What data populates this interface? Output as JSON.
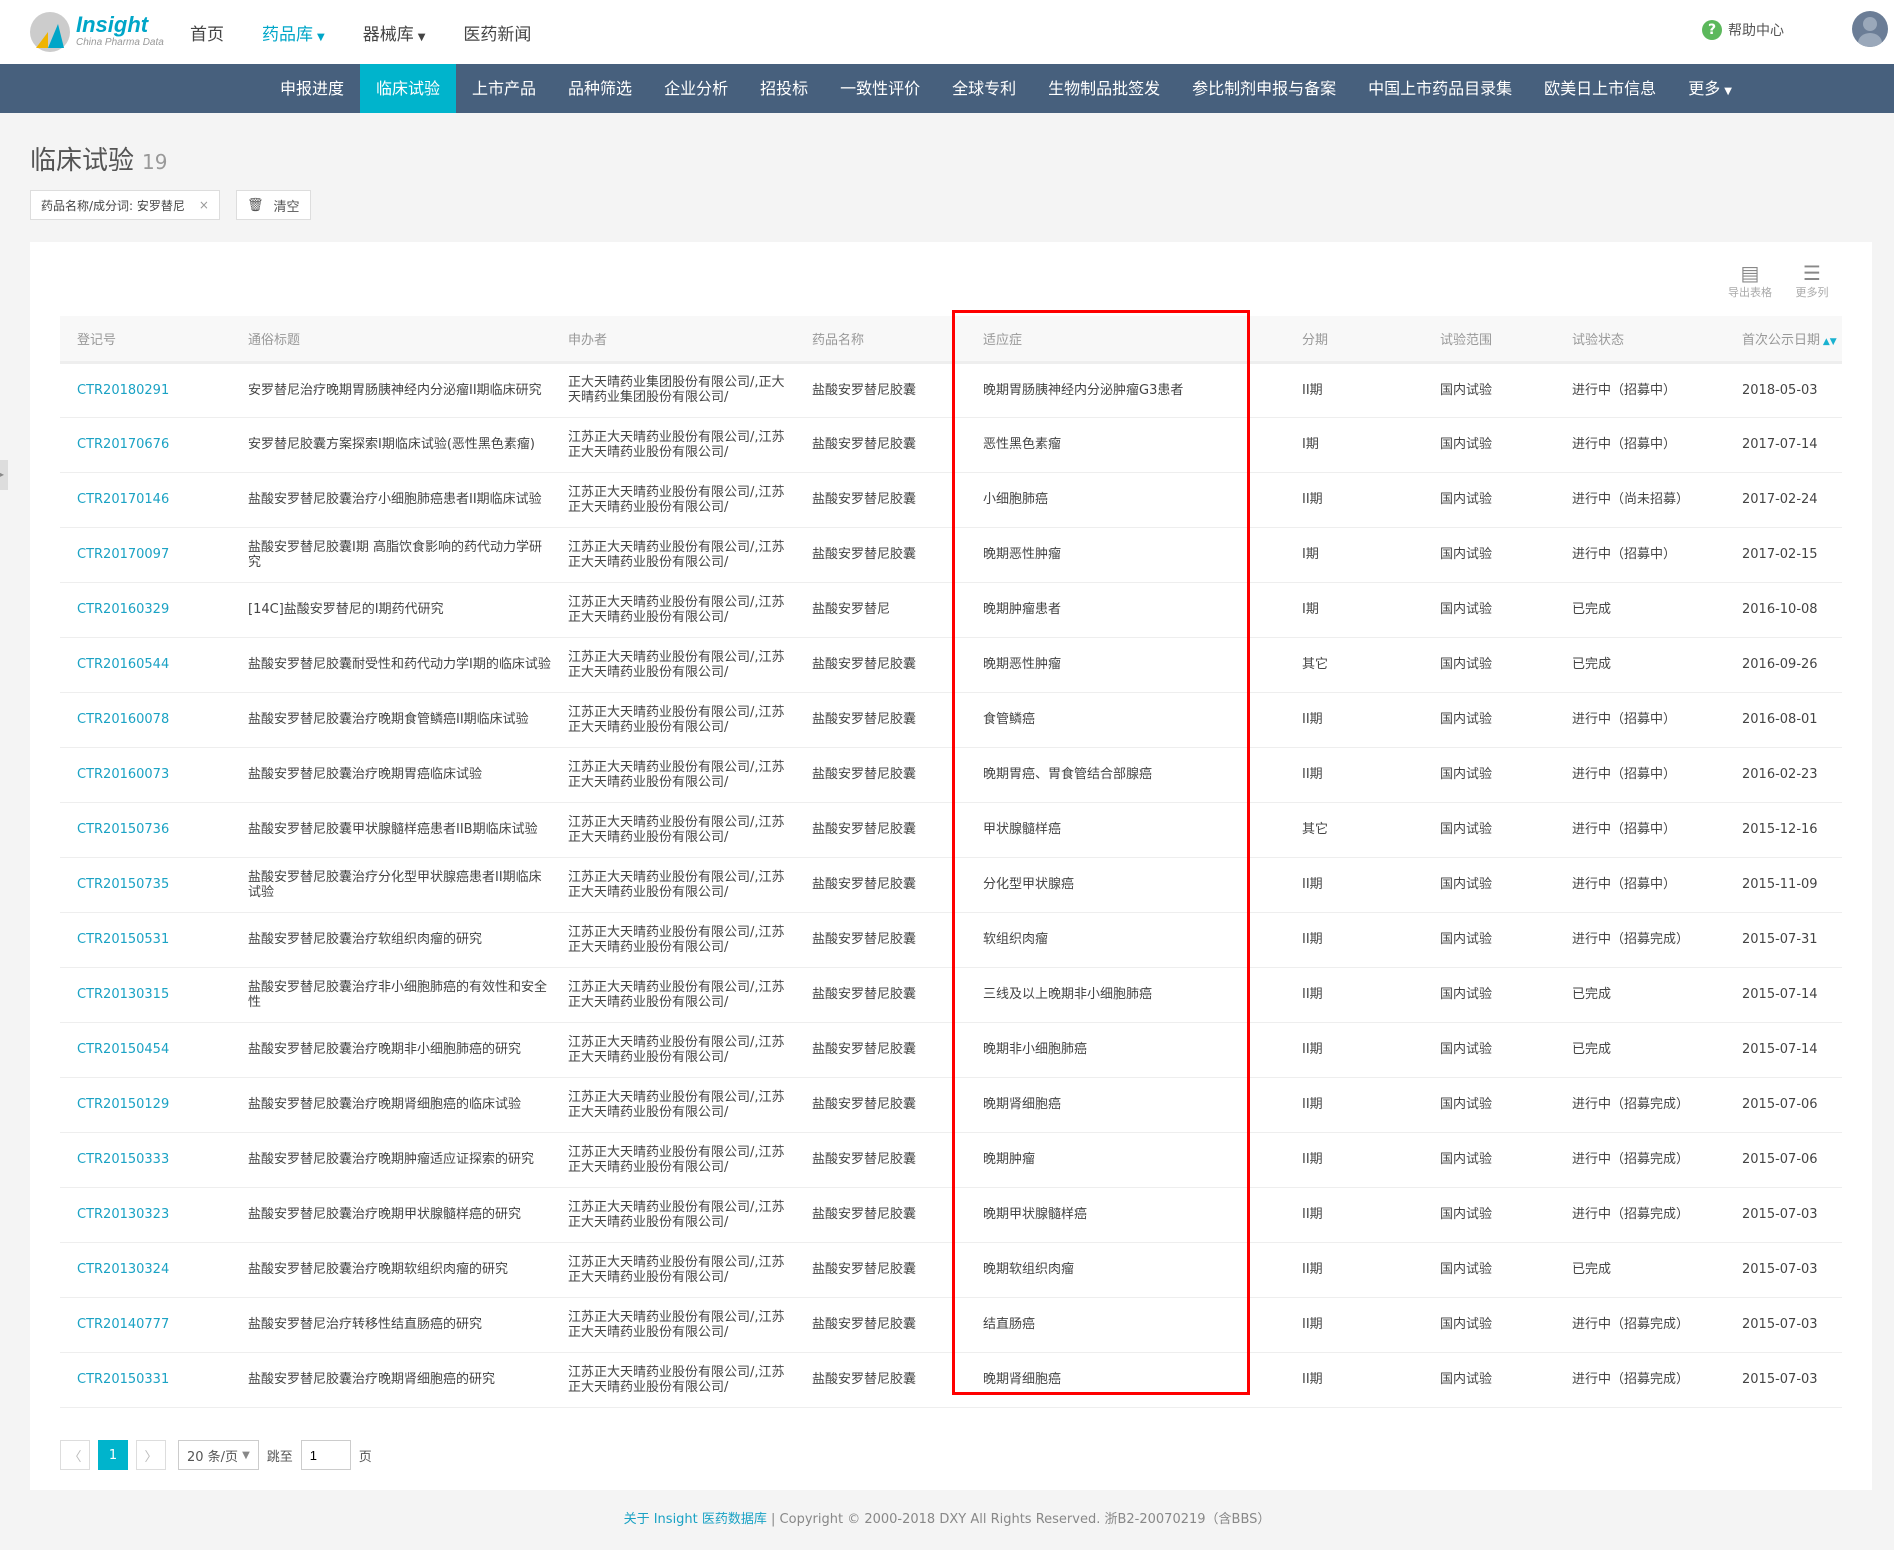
{
  "header": {
    "brand": "Insight",
    "brand_sub": "China Pharma Data",
    "nav": [
      {
        "label": "首页"
      },
      {
        "label": "药品库",
        "active": true,
        "dropdown": true
      },
      {
        "label": "器械库",
        "dropdown": true
      },
      {
        "label": "医药新闻"
      }
    ],
    "help": "帮助中心"
  },
  "main_nav": [
    "申报进度",
    "临床试验",
    "上市产品",
    "品种筛选",
    "企业分析",
    "招投标",
    "一致性评价",
    "全球专利",
    "生物制品批签发",
    "参比制剂申报与备案",
    "中国上市药品目录集",
    "欧美日上市信息",
    "更多"
  ],
  "main_nav_active": "临床试验",
  "page": {
    "title": "临床试验",
    "count": "19"
  },
  "filter": {
    "chip": "药品名称/成分词: 安罗替尼",
    "clear": "清空"
  },
  "tools": {
    "export": "导出表格",
    "more_cols": "更多列"
  },
  "columns": [
    "登记号",
    "通俗标题",
    "申办者",
    "药品名称",
    "适应症",
    "分期",
    "试验范围",
    "试验状态",
    "首次公示日期"
  ],
  "rows": [
    [
      "CTR20180291",
      "安罗替尼治疗晚期胃肠胰神经内分泌瘤II期临床研究",
      "正大天晴药业集团股份有限公司/,正大天晴药业集团股份有限公司/",
      "盐酸安罗替尼胶囊",
      "晚期胃肠胰神经内分泌肿瘤G3患者",
      "II期",
      "国内试验",
      "进行中（招募中）",
      "2018-05-03"
    ],
    [
      "CTR20170676",
      "安罗替尼胶囊方案探索I期临床试验(恶性黑色素瘤)",
      "江苏正大天晴药业股份有限公司/,江苏正大天晴药业股份有限公司/",
      "盐酸安罗替尼胶囊",
      "恶性黑色素瘤",
      "I期",
      "国内试验",
      "进行中（招募中）",
      "2017-07-14"
    ],
    [
      "CTR20170146",
      "盐酸安罗替尼胶囊治疗小细胞肺癌患者II期临床试验",
      "江苏正大天晴药业股份有限公司/,江苏正大天晴药业股份有限公司/",
      "盐酸安罗替尼胶囊",
      "小细胞肺癌",
      "II期",
      "国内试验",
      "进行中（尚未招募）",
      "2017-02-24"
    ],
    [
      "CTR20170097",
      "盐酸安罗替尼胶囊Ⅰ期 高脂饮食影响的药代动力学研究",
      "江苏正大天晴药业股份有限公司/,江苏正大天晴药业股份有限公司/",
      "盐酸安罗替尼胶囊",
      "晚期恶性肿瘤",
      "I期",
      "国内试验",
      "进行中（招募中）",
      "2017-02-15"
    ],
    [
      "CTR20160329",
      "[14C]盐酸安罗替尼的I期药代研究",
      "江苏正大天晴药业股份有限公司/,江苏正大天晴药业股份有限公司/",
      "盐酸安罗替尼",
      "晚期肿瘤患者",
      "I期",
      "国内试验",
      "已完成",
      "2016-10-08"
    ],
    [
      "CTR20160544",
      "盐酸安罗替尼胶囊耐受性和药代动力学I期的临床试验",
      "江苏正大天晴药业股份有限公司/,江苏正大天晴药业股份有限公司/",
      "盐酸安罗替尼胶囊",
      "晚期恶性肿瘤",
      "其它",
      "国内试验",
      "已完成",
      "2016-09-26"
    ],
    [
      "CTR20160078",
      "盐酸安罗替尼胶囊治疗晚期食管鳞癌II期临床试验",
      "江苏正大天晴药业股份有限公司/,江苏正大天晴药业股份有限公司/",
      "盐酸安罗替尼胶囊",
      "食管鳞癌",
      "II期",
      "国内试验",
      "进行中（招募中）",
      "2016-08-01"
    ],
    [
      "CTR20160073",
      "盐酸安罗替尼胶囊治疗晚期胃癌临床试验",
      "江苏正大天晴药业股份有限公司/,江苏正大天晴药业股份有限公司/",
      "盐酸安罗替尼胶囊",
      "晚期胃癌、胃食管结合部腺癌",
      "II期",
      "国内试验",
      "进行中（招募中）",
      "2016-02-23"
    ],
    [
      "CTR20150736",
      "盐酸安罗替尼胶囊甲状腺髓样癌患者IIB期临床试验",
      "江苏正大天晴药业股份有限公司/,江苏正大天晴药业股份有限公司/",
      "盐酸安罗替尼胶囊",
      "甲状腺髓样癌",
      "其它",
      "国内试验",
      "进行中（招募中）",
      "2015-12-16"
    ],
    [
      "CTR20150735",
      "盐酸安罗替尼胶囊治疗分化型甲状腺癌患者II期临床试验",
      "江苏正大天晴药业股份有限公司/,江苏正大天晴药业股份有限公司/",
      "盐酸安罗替尼胶囊",
      "分化型甲状腺癌",
      "II期",
      "国内试验",
      "进行中（招募中）",
      "2015-11-09"
    ],
    [
      "CTR20150531",
      "盐酸安罗替尼胶囊治疗软组织肉瘤的研究",
      "江苏正大天晴药业股份有限公司/,江苏正大天晴药业股份有限公司/",
      "盐酸安罗替尼胶囊",
      "软组织肉瘤",
      "II期",
      "国内试验",
      "进行中（招募完成）",
      "2015-07-31"
    ],
    [
      "CTR20130315",
      "盐酸安罗替尼胶囊治疗非小细胞肺癌的有效性和安全性",
      "江苏正大天晴药业股份有限公司/,江苏正大天晴药业股份有限公司/",
      "盐酸安罗替尼胶囊",
      "三线及以上晚期非小细胞肺癌",
      "II期",
      "国内试验",
      "已完成",
      "2015-07-14"
    ],
    [
      "CTR20150454",
      "盐酸安罗替尼胶囊治疗晚期非小细胞肺癌的研究",
      "江苏正大天晴药业股份有限公司/,江苏正大天晴药业股份有限公司/",
      "盐酸安罗替尼胶囊",
      "晚期非小细胞肺癌",
      "II期",
      "国内试验",
      "已完成",
      "2015-07-14"
    ],
    [
      "CTR20150129",
      "盐酸安罗替尼胶囊治疗晚期肾细胞癌的临床试验",
      "江苏正大天晴药业股份有限公司/,江苏正大天晴药业股份有限公司/",
      "盐酸安罗替尼胶囊",
      "晚期肾细胞癌",
      "II期",
      "国内试验",
      "进行中（招募完成）",
      "2015-07-06"
    ],
    [
      "CTR20150333",
      "盐酸安罗替尼胶囊治疗晚期肿瘤适应证探索的研究",
      "江苏正大天晴药业股份有限公司/,江苏正大天晴药业股份有限公司/",
      "盐酸安罗替尼胶囊",
      "晚期肿瘤",
      "II期",
      "国内试验",
      "进行中（招募完成）",
      "2015-07-06"
    ],
    [
      "CTR20130323",
      "盐酸安罗替尼胶囊治疗晚期甲状腺髓样癌的研究",
      "江苏正大天晴药业股份有限公司/,江苏正大天晴药业股份有限公司/",
      "盐酸安罗替尼胶囊",
      "晚期甲状腺髓样癌",
      "II期",
      "国内试验",
      "进行中（招募完成）",
      "2015-07-03"
    ],
    [
      "CTR20130324",
      "盐酸安罗替尼胶囊治疗晚期软组织肉瘤的研究",
      "江苏正大天晴药业股份有限公司/,江苏正大天晴药业股份有限公司/",
      "盐酸安罗替尼胶囊",
      "晚期软组织肉瘤",
      "II期",
      "国内试验",
      "已完成",
      "2015-07-03"
    ],
    [
      "CTR20140777",
      "盐酸安罗替尼治疗转移性结直肠癌的研究",
      "江苏正大天晴药业股份有限公司/,江苏正大天晴药业股份有限公司/",
      "盐酸安罗替尼胶囊",
      "结直肠癌",
      "II期",
      "国内试验",
      "进行中（招募完成）",
      "2015-07-03"
    ],
    [
      "CTR20150331",
      "盐酸安罗替尼胶囊治疗晚期肾细胞癌的研究",
      "江苏正大天晴药业股份有限公司/,江苏正大天晴药业股份有限公司/",
      "盐酸安罗替尼胶囊",
      "晚期肾细胞癌",
      "II期",
      "国内试验",
      "进行中（招募完成）",
      "2015-07-03"
    ]
  ],
  "pagination": {
    "prev": "〈",
    "current": "1",
    "next": "〉",
    "page_size": "20 条/页",
    "jump_label": "跳至",
    "jump_value": "1",
    "page_unit": "页"
  },
  "footer": {
    "link": "关于 Insight 医药数据库",
    "text": " | Copyright © 2000-2018 DXY All Rights Reserved. 浙B2-20070219（含BBS）"
  },
  "colors": {
    "accent": "#00b4cc",
    "nav_bg": "#47607d",
    "highlight_box": "#ff0000"
  }
}
